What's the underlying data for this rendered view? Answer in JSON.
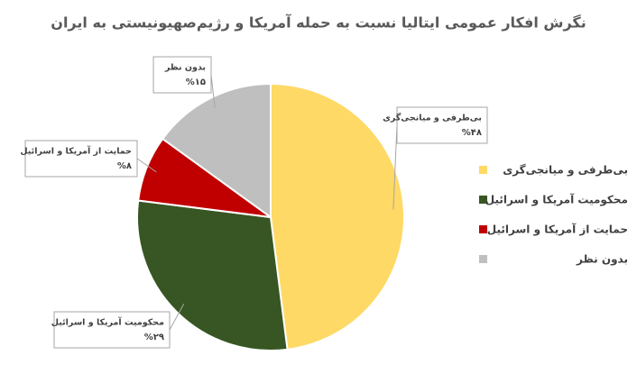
{
  "chart_data": {
    "type": "pie",
    "title": "نگرش افکار عمومی ایتالیا نسبت به حمله آمریکا و رژیم‌صهیونیستی به ایران",
    "categories": [
      "بی‌طرفی و میانجی‌گری",
      "محکومیت آمریکا و اسرائیل",
      "حمایت از آمریکا و اسرائیل",
      "بدون نظر"
    ],
    "values": [
      48,
      29,
      8,
      15
    ],
    "value_labels": [
      "%۴۸",
      "%۲۹",
      "%۸",
      "%۱۵"
    ],
    "colors": [
      "#ffd966",
      "#375623",
      "#c00000",
      "#bfbfbf"
    ],
    "legend": "right"
  }
}
